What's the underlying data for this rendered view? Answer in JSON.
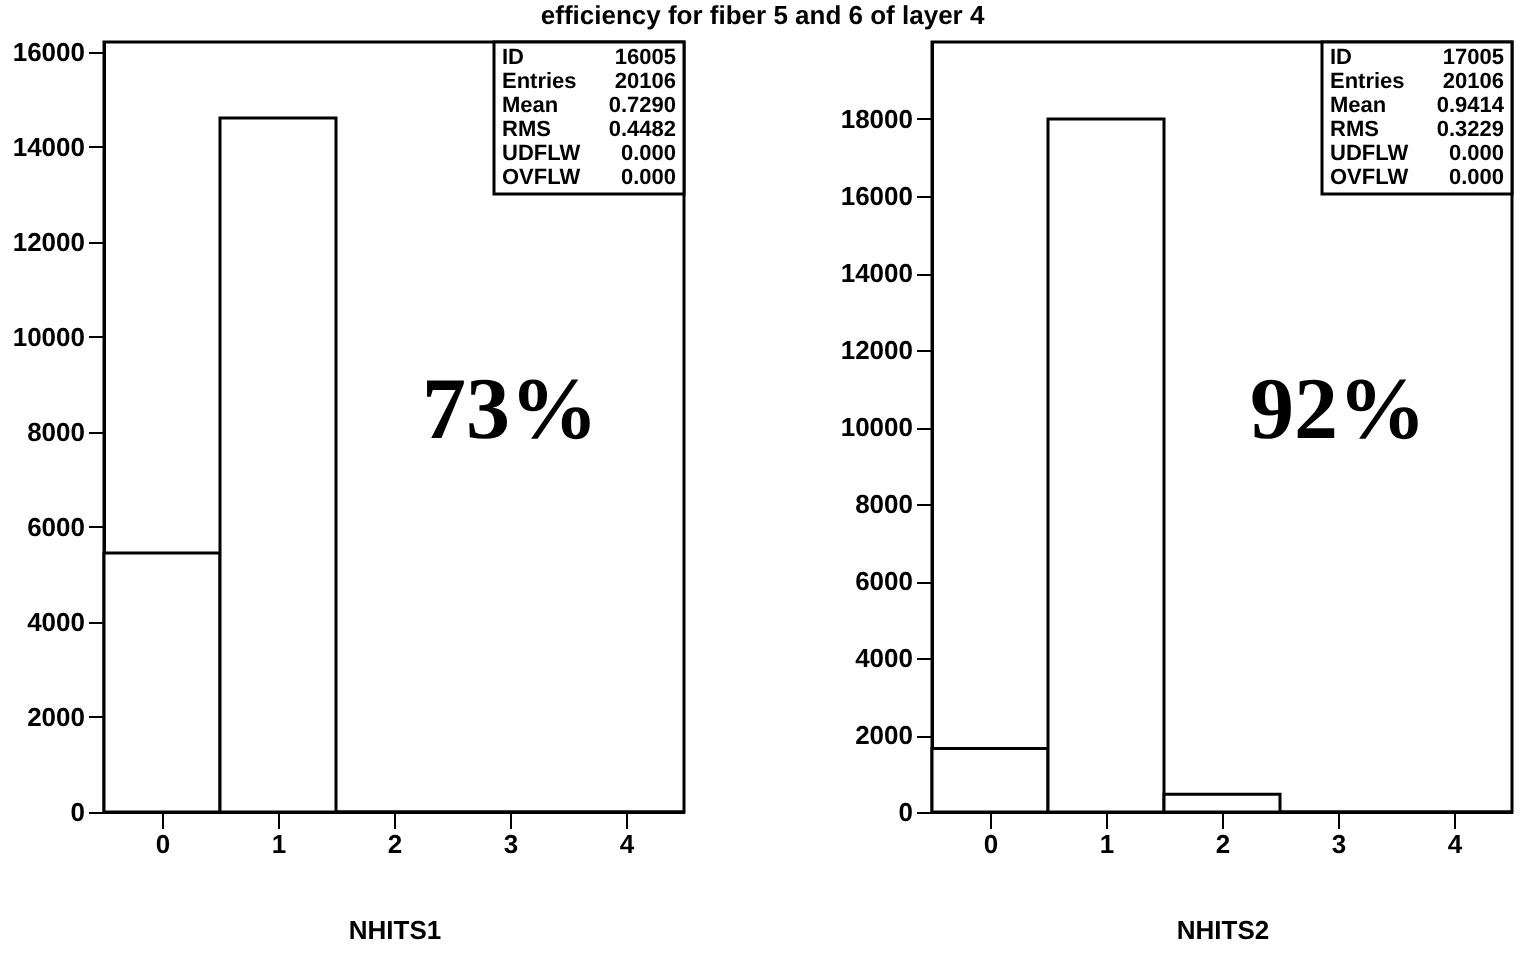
{
  "chart_data": [
    {
      "type": "histogram",
      "title": "efficiency for fiber 5 and 6 of layer 4",
      "xlabel": "NHITS1",
      "bins": [
        -0.5,
        0.5,
        1.5,
        2.5,
        3.5,
        4.5
      ],
      "values": [
        5450,
        14600,
        0,
        0,
        0
      ],
      "color": "#000000",
      "xlim": [
        -0.5,
        4.5
      ],
      "xticks": [
        0,
        1,
        2,
        3,
        4
      ],
      "ylim": [
        0,
        16200
      ],
      "yticks": [
        0,
        2000,
        4000,
        6000,
        8000,
        10000,
        12000,
        14000,
        16000
      ],
      "grid": false,
      "annotations": [
        "ID",
        "16005",
        "Entries",
        "20106",
        "Mean",
        "0.7290",
        "RMS",
        "0.4482",
        "UDFLW",
        "0.000",
        "OVFLW",
        "0.000",
        "73%"
      ]
    },
    {
      "type": "histogram",
      "xlabel": "NHITS2",
      "bins": [
        -0.5,
        0.5,
        1.5,
        2.5,
        3.5,
        4.5
      ],
      "values": [
        1650,
        18000,
        460,
        0,
        0
      ],
      "color": "#000000",
      "xlim": [
        -0.5,
        4.5
      ],
      "xticks": [
        0,
        1,
        2,
        3,
        4
      ],
      "ylim": [
        0,
        20000
      ],
      "yticks": [
        0,
        2000,
        4000,
        6000,
        8000,
        10000,
        12000,
        14000,
        16000,
        18000
      ],
      "grid": false,
      "annotations": [
        "ID",
        "17005",
        "Entries",
        "20106",
        "Mean",
        "0.9414",
        "RMS",
        "0.3229",
        "UDFLW",
        "0.000",
        "OVFLW",
        "0.000",
        "92%"
      ]
    }
  ]
}
